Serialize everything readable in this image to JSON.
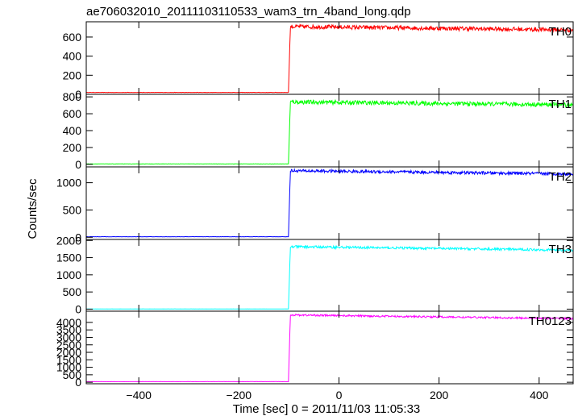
{
  "chart_data": {
    "type": "line",
    "title": "ae706032010_20111103110533_wam3_trn_4band_long.qdp",
    "xlabel": "Time [sec] 0 = 2011/11/03 11:05:33",
    "ylabel": "Counts/sec",
    "xlim": [
      -505,
      468
    ],
    "x_ticks": [
      -400,
      -200,
      0,
      200,
      400
    ],
    "onset_time": -100,
    "series": [
      {
        "name": "TH0",
        "color": "#ff0000",
        "ylim": [
          0,
          760
        ],
        "y_ticks": [
          0,
          200,
          400,
          600
        ],
        "pre_level": 20,
        "post_peak": 710,
        "post_end": 675,
        "noise": 22
      },
      {
        "name": "TH1",
        "color": "#00ff00",
        "ylim": [
          -30,
          830
        ],
        "y_ticks": [
          0,
          200,
          400,
          600,
          800
        ],
        "pre_level": 5,
        "post_peak": 740,
        "post_end": 705,
        "noise": 25
      },
      {
        "name": "TH2",
        "color": "#0000ff",
        "ylim": [
          -40,
          1290
        ],
        "y_ticks": [
          0,
          500,
          1000
        ],
        "pre_level": 10,
        "post_peak": 1220,
        "post_end": 1160,
        "noise": 28
      },
      {
        "name": "TH3",
        "color": "#00ffff",
        "ylim": [
          -60,
          2030
        ],
        "y_ticks": [
          0,
          500,
          1000,
          1500,
          2000
        ],
        "pre_level": 5,
        "post_peak": 1820,
        "post_end": 1720,
        "noise": 35
      },
      {
        "name": "TH0123",
        "color": "#ff00ff",
        "ylim": [
          -100,
          4750
        ],
        "y_ticks": [
          0,
          500,
          1000,
          1500,
          2000,
          2500,
          3000,
          3500,
          4000
        ],
        "pre_level": 40,
        "post_peak": 4500,
        "post_end": 4250,
        "noise": 60
      }
    ]
  }
}
